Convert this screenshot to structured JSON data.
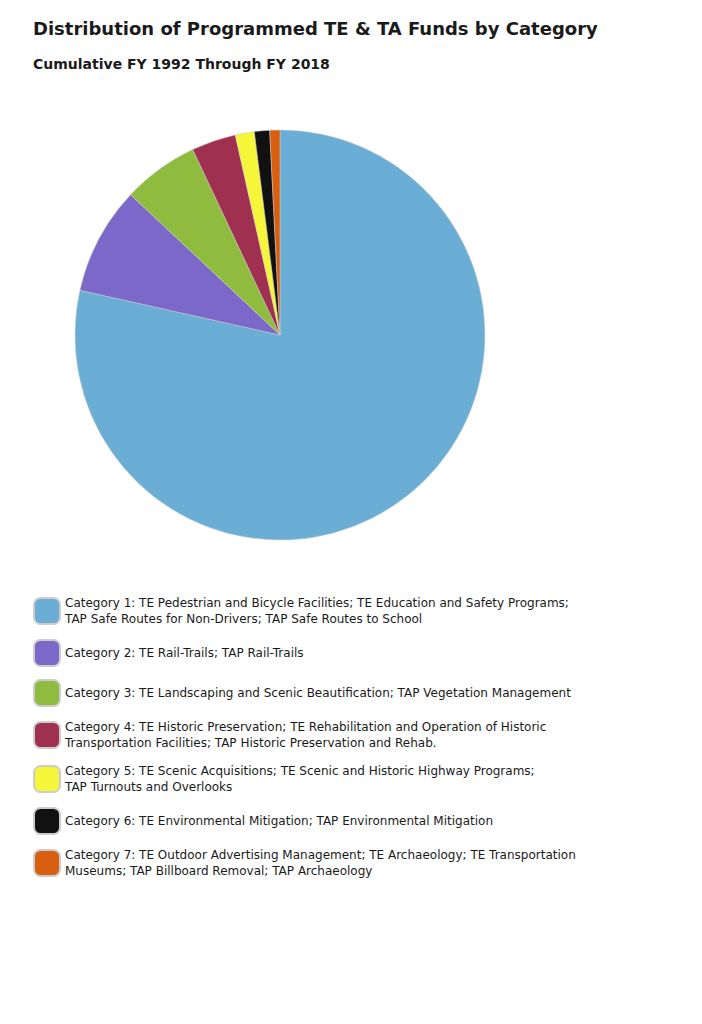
{
  "chart_data": {
    "type": "pie",
    "title": "Distribution of Programmed TE & TA Funds by Category",
    "subtitle": "Cumulative FY 1992 Through FY 2018",
    "categories": [
      "Category 1: TE Pedestrian and Bicycle Facilities; TE Education and Safety Programs;\nTAP Safe Routes for Non-Drivers; TAP Safe Routes to School",
      "Category 2: TE Rail-Trails; TAP Rail-Trails",
      "Category 3: TE Landscaping and Scenic Beautification; TAP Vegetation Management",
      "Category 4: TE Historic Preservation; TE Rehabilitation and Operation of Historic\nTransportation Facilities; TAP Historic Preservation and Rehab.",
      "Category 5: TE Scenic Acquisitions; TE Scenic and Historic Highway Programs;\nTAP Turnouts and Overlooks",
      "Category 6: TE Environmental Mitigation; TAP Environmental Mitigation",
      "Category 7: TE Outdoor Advertising Management; TE Archaeology; TE Transportation\nMuseums; TAP Billboard Removal; TAP Archaeology"
    ],
    "values": [
      78.5,
      8.5,
      6.0,
      3.5,
      1.5,
      1.2,
      0.8
    ],
    "colors": [
      "#6aaed6",
      "#7b68c8",
      "#8fbc3f",
      "#a03050",
      "#f5f53a",
      "#111111",
      "#d95f10"
    ],
    "legend": "bottom",
    "data_labels": false
  }
}
